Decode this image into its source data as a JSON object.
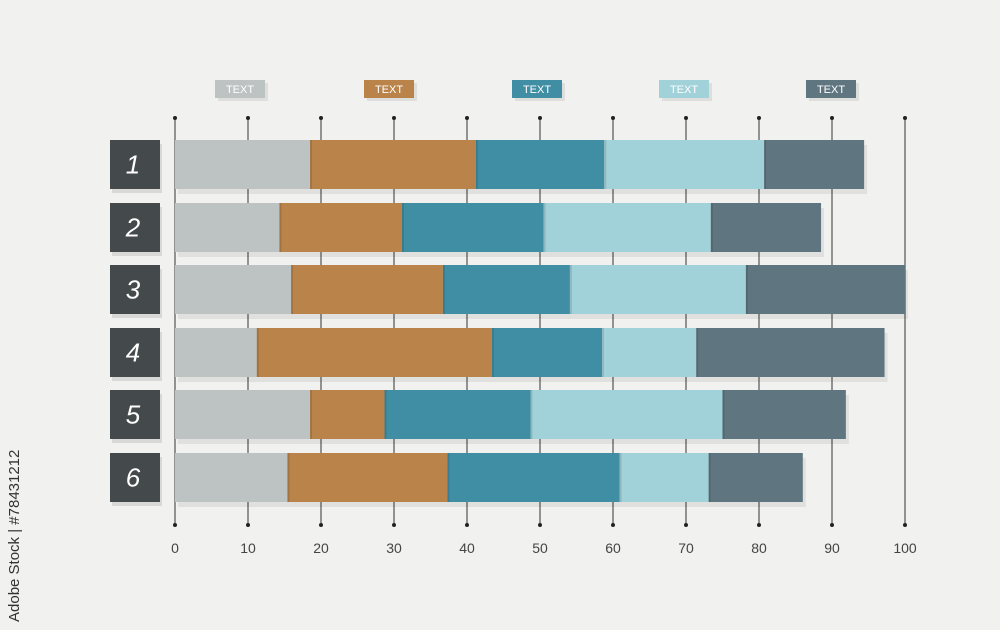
{
  "chart_data": {
    "type": "bar",
    "orientation": "horizontal",
    "stacked": true,
    "categories": [
      "1",
      "2",
      "3",
      "4",
      "5",
      "6"
    ],
    "series": [
      {
        "name": "TEXT",
        "color": "#bdc3c2",
        "values": [
          18.5,
          14.3,
          15.9,
          11.2,
          18.5,
          15.4
        ]
      },
      {
        "name": "TEXT",
        "color": "#b9834a",
        "values": [
          22.7,
          16.8,
          20.8,
          32.2,
          10.2,
          21.9
        ]
      },
      {
        "name": "TEXT",
        "color": "#3f8ea4",
        "values": [
          17.6,
          19.4,
          17.4,
          15.1,
          20.0,
          23.6
        ]
      },
      {
        "name": "TEXT",
        "color": "#a2d2d9",
        "values": [
          21.9,
          22.9,
          24.1,
          12.9,
          26.3,
          12.2
        ]
      },
      {
        "name": "TEXT",
        "color": "#5f7680",
        "values": [
          13.7,
          15.1,
          21.8,
          25.8,
          16.9,
          12.9
        ]
      }
    ],
    "xlim": [
      0,
      100
    ],
    "xticks": [
      "0",
      "10",
      "20",
      "30",
      "40",
      "50",
      "60",
      "70",
      "80",
      "90",
      "100"
    ],
    "legend_position": "top",
    "grid": true
  },
  "watermark": "Adobe Stock | #78431212"
}
